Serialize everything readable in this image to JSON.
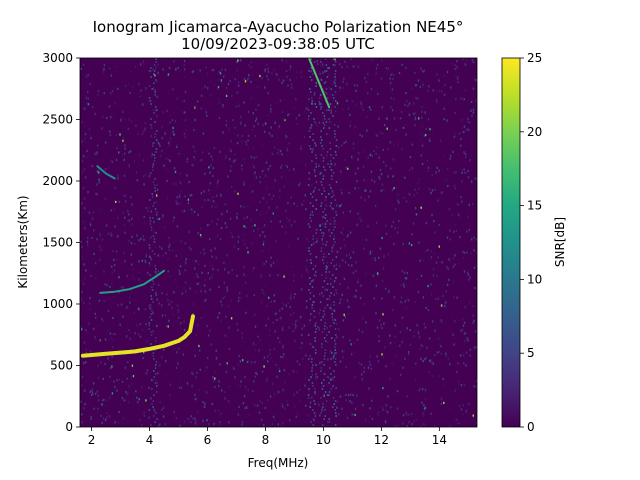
{
  "chart_data": {
    "type": "heatmap",
    "title": "Ionogram Jicamarca-Ayacucho Polarization NE45°",
    "subtitle": "10/09/2023-09:38:05 UTC",
    "xlabel": "Freq(MHz)",
    "ylabel": "Kilometers(Km)",
    "colorbar_label": "SNR[dB]",
    "xlim": [
      1.6,
      15.3
    ],
    "ylim": [
      0,
      3000
    ],
    "clim": [
      0,
      25
    ],
    "colormap": "viridis",
    "grid": false,
    "x_ticks": [
      2,
      4,
      6,
      8,
      10,
      12,
      14
    ],
    "y_ticks": [
      0,
      500,
      1000,
      1500,
      2000,
      2500,
      3000
    ],
    "colorbar_ticks": [
      0,
      5,
      10,
      15,
      20,
      25
    ],
    "traces": [
      {
        "x": [
          1.7,
          2.0,
          2.5,
          3.0,
          3.5,
          4.0,
          4.5,
          5.0,
          5.2,
          5.4,
          5.5
        ],
        "y": [
          580,
          585,
          595,
          605,
          615,
          635,
          660,
          700,
          730,
          780,
          900
        ],
        "snr_db": 24
      },
      {
        "x": [
          2.3,
          2.8,
          3.3,
          3.8,
          4.2,
          4.5
        ],
        "y": [
          1090,
          1100,
          1120,
          1160,
          1220,
          1270
        ],
        "snr_db": 14
      },
      {
        "x": [
          2.2,
          2.5,
          2.8
        ],
        "y": [
          2120,
          2060,
          2020
        ],
        "snr_db": 12
      },
      {
        "x": [
          9.5,
          10.2
        ],
        "y": [
          3000,
          2600
        ],
        "snr_db": 18
      }
    ]
  }
}
